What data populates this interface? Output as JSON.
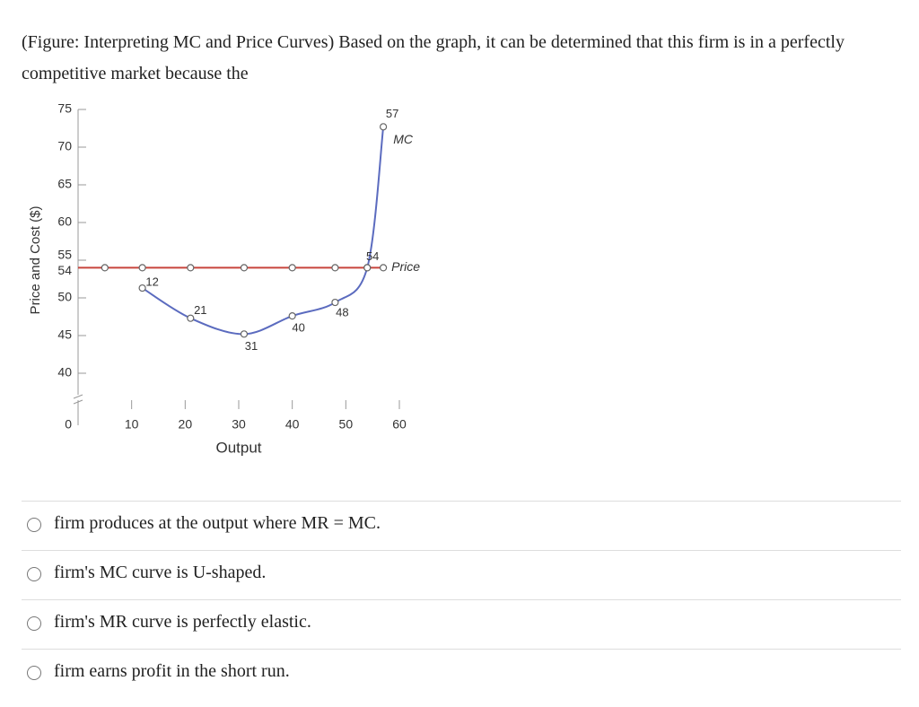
{
  "question": "(Figure: Interpreting MC and Price Curves) Based on the graph, it can be determined that this firm is in a perfectly competitive market because the",
  "chart_data": {
    "type": "line",
    "y_axis_label": "Price and Cost ($)",
    "x_axis_label": "Output",
    "xlim": [
      0,
      60
    ],
    "xticks": [
      10,
      20,
      30,
      40,
      50,
      60
    ],
    "ylim": [
      0,
      75
    ],
    "yticks": [
      0,
      40,
      45,
      50,
      54,
      55,
      60,
      65,
      70,
      75
    ],
    "y_axis_break": true,
    "series": [
      {
        "name": "MC",
        "color": "#5b6bbf",
        "x": [
          12,
          21,
          31,
          40,
          48,
          54,
          57
        ],
        "values": [
          51.3,
          47.3,
          45.2,
          47.6,
          49.4,
          54,
          72.7
        ],
        "smooth": true,
        "point_labels": true
      },
      {
        "name": "Price",
        "color": "#c8453c",
        "x": [
          5,
          12,
          21,
          31,
          40,
          48,
          54,
          57
        ],
        "values": [
          54,
          54,
          54,
          54,
          54,
          54,
          54,
          54
        ],
        "smooth": false,
        "point_labels": false
      }
    ]
  },
  "options": [
    "firm produces at the output where MR = MC.",
    "firm's MC curve is U-shaped.",
    "firm's MR curve is perfectly elastic.",
    "firm earns profit in the short run."
  ]
}
